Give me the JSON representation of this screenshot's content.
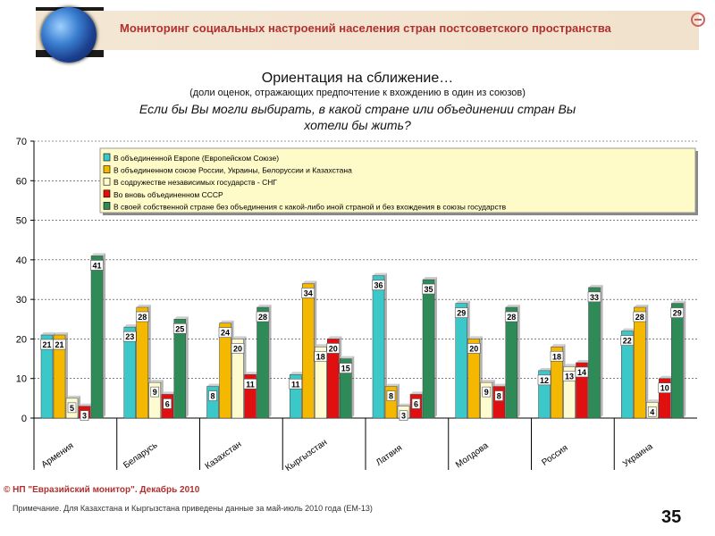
{
  "header": {
    "title": "Мониторинг социальных настроений населения стран постсоветского пространства"
  },
  "headings": {
    "line1": "Ориентация на сближение…",
    "line2": "(доли оценок, отражающих предпочтение к вхождению в один из союзов)",
    "line3": "Если бы Вы могли выбирать, в какой стране или объединении стран Вы",
    "line4": "хотели бы жить?"
  },
  "chart_data": {
    "type": "bar",
    "ylim": [
      0,
      70
    ],
    "yticks": [
      0,
      10,
      20,
      30,
      40,
      50,
      60,
      70
    ],
    "grid": true,
    "legend_position": "top",
    "categories": [
      "Армения",
      "Беларусь",
      "Казахстан",
      "Кыргызстан",
      "Латвия",
      "Молдова",
      "Россия",
      "Украина"
    ],
    "series": [
      {
        "name": "В объединенной Европе (Европейском Союзе)",
        "color": "#3cc8c8",
        "values": [
          21,
          23,
          8,
          11,
          36,
          29,
          12,
          22
        ]
      },
      {
        "name": "В объединенном союзе России, Украины, Белоруссии и Казахстана",
        "color": "#f5b800",
        "values": [
          21,
          28,
          24,
          34,
          8,
          20,
          18,
          28
        ]
      },
      {
        "name": "В содружестве независимых государств - СНГ",
        "color": "#fffbd0",
        "values": [
          5,
          9,
          20,
          18,
          3,
          9,
          13,
          4
        ]
      },
      {
        "name": "Во вновь объединенном СССР",
        "color": "#e01010",
        "values": [
          3,
          6,
          11,
          20,
          6,
          8,
          14,
          10
        ]
      },
      {
        "name": "В своей собственной стране без объединения с какой-либо иной страной и без вхождения в союзы государств",
        "color": "#2e8b57",
        "values": [
          41,
          25,
          28,
          15,
          35,
          28,
          33,
          29
        ]
      }
    ]
  },
  "footer": {
    "copyright": "© НП \"Евразийский монитор\". Декабрь 2010",
    "note": "Примечание. Для Казахстана и Кыргызстана приведены данные за май-июль 2010 года (ЕМ-13)",
    "page_number": "35"
  }
}
